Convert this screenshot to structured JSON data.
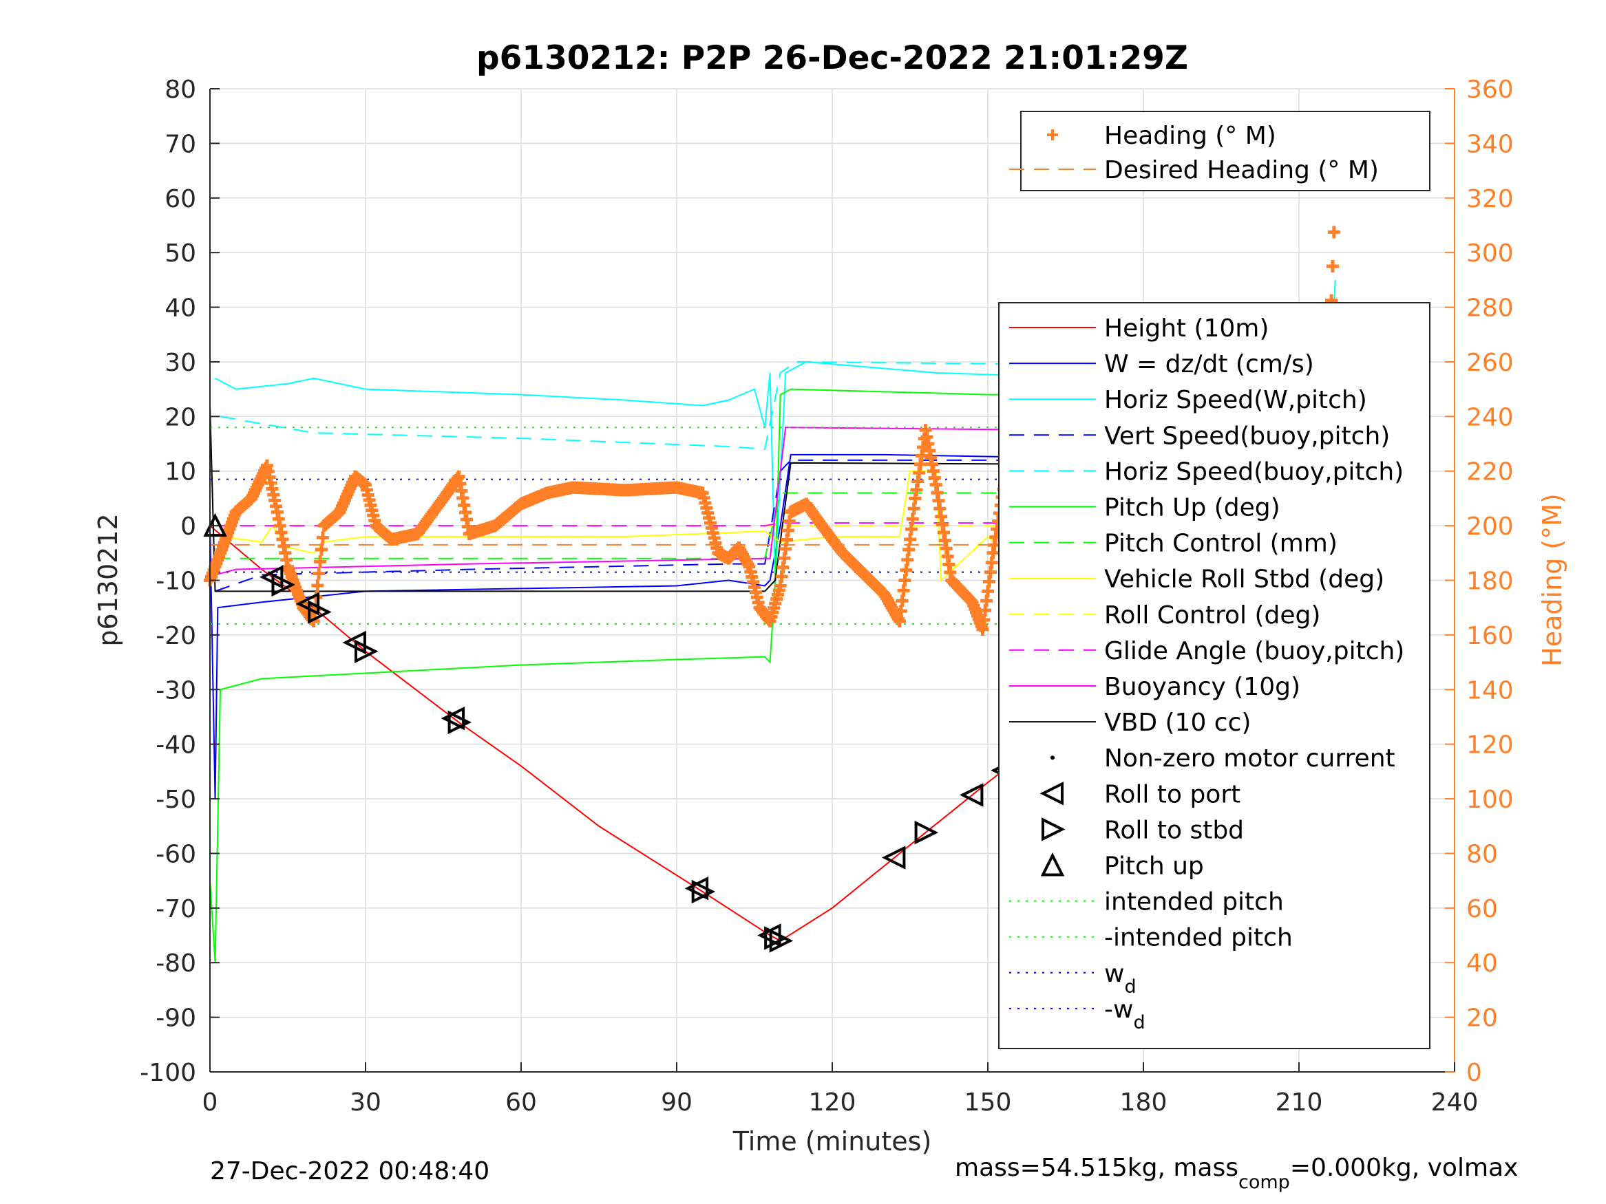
{
  "chart_data": {
    "type": "line",
    "title": "p6130212: P2P 26-Dec-2022 21:01:29Z",
    "xlabel": "Time (minutes)",
    "ylabel": "p6130212",
    "ylabel_right": "Heading (°M)",
    "xlim": [
      0,
      240
    ],
    "ylim": [
      -100,
      80
    ],
    "ylim_right": [
      0,
      360
    ],
    "x_ticks": [
      0,
      30,
      60,
      90,
      120,
      150,
      180,
      210,
      240
    ],
    "y_ticks": [
      80,
      70,
      60,
      50,
      40,
      30,
      20,
      10,
      0,
      -10,
      -20,
      -30,
      -40,
      -50,
      -60,
      -70,
      -80,
      -90,
      -100
    ],
    "y_ticks_right": [
      360,
      340,
      320,
      300,
      280,
      260,
      240,
      220,
      200,
      180,
      160,
      140,
      120,
      100,
      80,
      60,
      40,
      20,
      0
    ],
    "grid": true,
    "colors": {
      "heading": "#ff7f27",
      "axis": "#262626",
      "grid": "#dcdcdc"
    },
    "legend_top": [
      {
        "label": "Heading (° M)",
        "color": "#ff7f27",
        "style": "plus"
      },
      {
        "label": "Desired Heading (° M)",
        "color": "#ff7f27",
        "style": "dashed"
      }
    ],
    "legend_main": [
      {
        "label": "Height (10m)",
        "color": "#ff0000",
        "style": "solid"
      },
      {
        "label": "W = dz/dt (cm/s)",
        "color": "#0000ff",
        "style": "solid"
      },
      {
        "label": "Horiz Speed(W,pitch)",
        "color": "#00ffff",
        "style": "solid"
      },
      {
        "label": "Vert Speed(buoy,pitch)",
        "color": "#0000ff",
        "style": "dashed"
      },
      {
        "label": "Horiz Speed(buoy,pitch)",
        "color": "#00ffff",
        "style": "dashed"
      },
      {
        "label": "Pitch Up (deg)",
        "color": "#00ff00",
        "style": "solid"
      },
      {
        "label": "Pitch Control (mm)",
        "color": "#00ff00",
        "style": "dashed"
      },
      {
        "label": "Vehicle Roll Stbd (deg)",
        "color": "#ffff00",
        "style": "solid"
      },
      {
        "label": "Roll Control (deg)",
        "color": "#ffff00",
        "style": "dashed"
      },
      {
        "label": "Glide Angle (buoy,pitch)",
        "color": "#ff00ff",
        "style": "dashed"
      },
      {
        "label": "Buoyancy (10g)",
        "color": "#ff00ff",
        "style": "solid"
      },
      {
        "label": "VBD (10 cc)",
        "color": "#000000",
        "style": "solid"
      },
      {
        "label": "Non-zero motor current",
        "color": "#000000",
        "style": "dot"
      },
      {
        "label": "Roll to port",
        "color": "#000000",
        "style": "tri-left"
      },
      {
        "label": "Roll to stbd",
        "color": "#000000",
        "style": "tri-right"
      },
      {
        "label": "Pitch up",
        "color": "#000000",
        "style": "tri-up"
      },
      {
        "label": "intended pitch",
        "color": "#00ff00",
        "style": "dotted"
      },
      {
        "label": "-intended pitch",
        "color": "#00ff00",
        "style": "dotted"
      },
      {
        "label": "w",
        "sub": "d",
        "color": "#0000ff",
        "style": "dotted"
      },
      {
        "label": "-w",
        "sub": "d",
        "color": "#0000ff",
        "style": "dotted"
      }
    ],
    "series": [
      {
        "name": "Height (10m)",
        "color": "#ff0000",
        "style": "solid",
        "width": 2,
        "x": [
          0,
          10,
          20,
          30,
          48,
          60,
          75,
          95,
          108,
          110,
          120,
          133,
          150,
          165,
          180,
          195,
          205,
          217
        ],
        "y": [
          0,
          -8,
          -15,
          -23,
          -36,
          -44,
          -55,
          -67,
          -75,
          -76,
          -70,
          -60,
          -47,
          -36,
          -25,
          -15,
          -8,
          0
        ]
      },
      {
        "name": "W = dz/dt (cm/s)",
        "color": "#0000ff",
        "style": "solid",
        "width": 2,
        "x": [
          0,
          1,
          1.5,
          10,
          20,
          30,
          60,
          90,
          100,
          107,
          108,
          110,
          112,
          130,
          160,
          190,
          217
        ],
        "y": [
          0,
          -50,
          -15,
          -14,
          -13,
          -12,
          -11.5,
          -11,
          -10,
          -11,
          -10,
          0,
          13,
          13,
          12.5,
          12,
          11
        ]
      },
      {
        "name": "Horiz Speed(W,pitch)",
        "color": "#00ffff",
        "style": "solid",
        "width": 2,
        "x": [
          1,
          5,
          15,
          20,
          30,
          60,
          80,
          95,
          100,
          105,
          107,
          108,
          109,
          111,
          115,
          140,
          170,
          200,
          216,
          217
        ],
        "y": [
          27,
          25,
          26,
          27,
          25,
          24,
          23,
          22,
          23,
          25,
          18,
          28,
          -10,
          28,
          30,
          28,
          27,
          26,
          25,
          45
        ]
      },
      {
        "name": "Vert Speed(buoy,pitch)",
        "color": "#0000ff",
        "style": "dashed",
        "width": 2,
        "x": [
          1,
          10,
          50,
          100,
          107,
          110,
          112,
          217
        ],
        "y": [
          -12,
          -9,
          -8,
          -7,
          -7,
          10,
          12,
          12
        ]
      },
      {
        "name": "Horiz Speed(buoy,pitch)",
        "color": "#00ffff",
        "style": "dashed",
        "width": 2,
        "x": [
          2,
          20,
          60,
          100,
          107,
          110,
          113,
          217
        ],
        "y": [
          20,
          17,
          16,
          14.5,
          14,
          28,
          30,
          29
        ]
      },
      {
        "name": "Pitch Up (deg)",
        "color": "#00ff00",
        "style": "solid",
        "width": 2,
        "x": [
          0,
          1,
          2,
          10,
          30,
          60,
          90,
          107,
          108,
          109,
          110,
          112,
          150,
          200,
          216
        ],
        "y": [
          -65,
          -80,
          -30,
          -28,
          -27,
          -25.5,
          -24.5,
          -24,
          -25,
          -10,
          24,
          25,
          24,
          24,
          23
        ]
      },
      {
        "name": "Pitch Control (mm)",
        "color": "#00ff00",
        "style": "dashed",
        "width": 2,
        "x": [
          1,
          107,
          110,
          217
        ],
        "y": [
          -6,
          -6,
          6,
          6
        ]
      },
      {
        "name": "Vehicle Roll Stbd (deg)",
        "color": "#ffff00",
        "style": "solid",
        "width": 2,
        "x": [
          2,
          10,
          12,
          15,
          20,
          22,
          30,
          40,
          48,
          60,
          80,
          107,
          110,
          120,
          133,
          135,
          140,
          141,
          150,
          160,
          170,
          180,
          190,
          200,
          217
        ],
        "y": [
          -2,
          -3,
          0,
          -4,
          -5,
          -3,
          -2,
          -2,
          -2,
          -2,
          -2,
          -1,
          -3,
          -2,
          -2,
          10,
          10,
          -10,
          -2,
          -10,
          10,
          -10,
          10,
          -9,
          5
        ]
      },
      {
        "name": "Roll Control (deg)",
        "color": "#ffff00",
        "style": "dashed",
        "width": 2,
        "x": [
          1,
          217
        ],
        "y": [
          0,
          0
        ]
      },
      {
        "name": "Glide Angle (buoy,pitch)",
        "color": "#ff00ff",
        "style": "dashed",
        "width": 2,
        "x": [
          1,
          107,
          110,
          217
        ],
        "y": [
          0,
          0,
          0.5,
          0.5
        ]
      },
      {
        "name": "Buoyancy (10g)",
        "color": "#ff00ff",
        "style": "solid",
        "width": 2,
        "x": [
          1,
          5,
          50,
          107,
          108,
          111,
          217
        ],
        "y": [
          -9,
          -8,
          -7,
          -6,
          -6,
          18,
          17
        ]
      },
      {
        "name": "VBD (10 cc)",
        "color": "#000000",
        "style": "solid",
        "width": 2,
        "x": [
          0,
          1,
          107,
          109,
          112,
          217
        ],
        "y": [
          22,
          -12,
          -12,
          -10,
          11.5,
          11
        ]
      },
      {
        "name": "intended pitch",
        "color": "#00ff00",
        "style": "dotted",
        "width": 2,
        "x": [
          0,
          217
        ],
        "y": [
          18,
          18
        ]
      },
      {
        "name": "-intended pitch",
        "color": "#00ff00",
        "style": "dotted",
        "width": 2,
        "x": [
          0,
          217
        ],
        "y": [
          -18,
          -18
        ]
      },
      {
        "name": "w_d",
        "color": "#0000ff",
        "style": "dotted",
        "width": 2,
        "x": [
          0,
          217
        ],
        "y": [
          8.5,
          8.5
        ]
      },
      {
        "name": "-w_d",
        "color": "#0000ff",
        "style": "dotted",
        "width": 2,
        "x": [
          0,
          217
        ],
        "y": [
          -8.5,
          -8.5
        ]
      }
    ],
    "desired_heading": {
      "x": [
        0,
        217
      ],
      "y": [
        193,
        193
      ]
    },
    "heading": {
      "x": [
        0,
        2,
        5,
        8,
        11,
        13,
        15,
        18,
        20,
        22,
        25,
        28,
        30,
        32,
        35,
        40,
        45,
        48,
        50,
        55,
        60,
        65,
        70,
        80,
        90,
        95,
        98,
        100,
        102,
        104,
        106,
        108,
        110,
        112,
        115,
        118,
        122,
        130,
        133,
        136,
        138,
        140,
        143,
        147,
        149,
        151,
        154,
        157,
        160,
        162,
        165,
        167,
        170,
        172,
        175,
        177,
        180,
        183,
        185,
        188,
        190,
        193,
        196,
        199,
        202,
        208,
        212,
        215,
        216,
        217
      ],
      "y": [
        180,
        190,
        205,
        210,
        222,
        205,
        185,
        170,
        165,
        200,
        205,
        218,
        215,
        200,
        195,
        197,
        210,
        218,
        197,
        200,
        208,
        212,
        214,
        213,
        214,
        212,
        190,
        188,
        192,
        185,
        170,
        165,
        178,
        205,
        208,
        200,
        190,
        175,
        165,
        210,
        235,
        215,
        180,
        172,
        162,
        190,
        225,
        200,
        172,
        165,
        205,
        215,
        175,
        165,
        215,
        233,
        175,
        165,
        215,
        230,
        175,
        165,
        225,
        195,
        205,
        205,
        205,
        230,
        270,
        320
      ]
    },
    "roll_port_markers": {
      "x": [
        12,
        19,
        28,
        47,
        94,
        108,
        132,
        147,
        153,
        158,
        169,
        174,
        186,
        191,
        199,
        205,
        217
      ]
    },
    "roll_stbd_markers": {
      "x": [
        14,
        21,
        30,
        48,
        95,
        109,
        110,
        138,
        163,
        180,
        195,
        202
      ]
    },
    "pitch_up_markers": {
      "x": [
        1
      ],
      "y": [
        0
      ]
    }
  },
  "footer": {
    "timestamp": "27-Dec-2022 00:48:40",
    "mass_text": "mass=54.515kg, mass",
    "mass_sub": "comp",
    "mass_rest": "=0.000kg, volmax"
  }
}
